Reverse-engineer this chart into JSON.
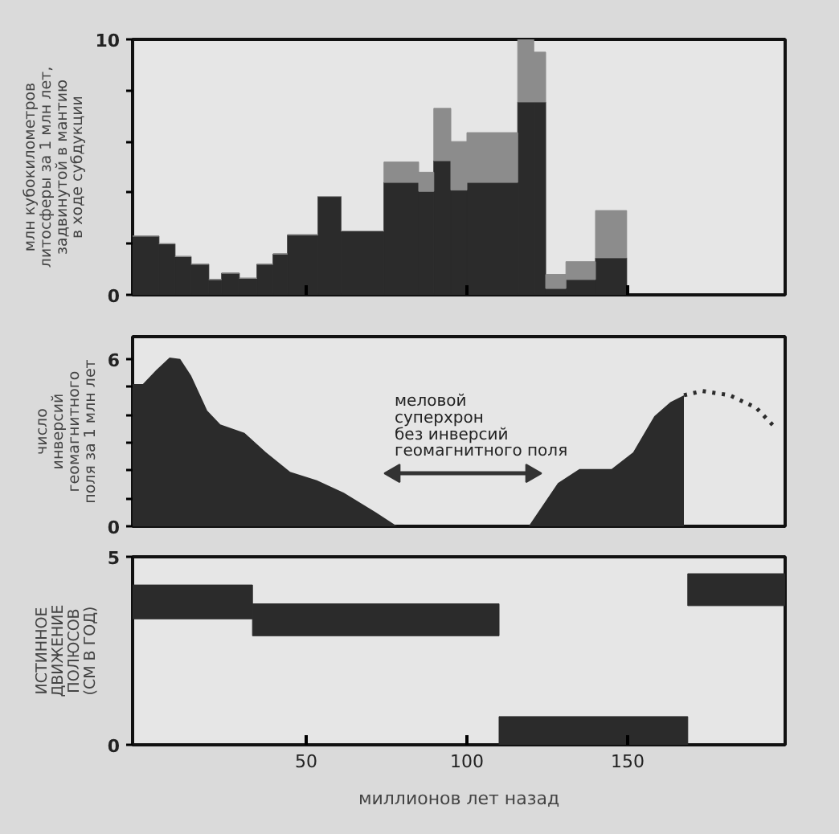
{
  "chart_data": [
    {
      "type": "bar",
      "stacked": true,
      "ylabel": "млн кубокилометров\nлитосферы за 1 млн лет,\nзадвинутой в мантию\nв ходе субдукции",
      "x": [
        0.1,
        6.7,
        11.7,
        16.95,
        21.7,
        26.45,
        31.95,
        37.2,
        41.95,
        48.95,
        57.25,
        67.5,
        79.6,
        87.35,
        92.35,
        97.5,
        107.9,
        118.3,
        122.65,
        127.65,
        135.4,
        144.85
      ],
      "series": [
        {
          "color": "#2b2b2b",
          "values": [
            2.3,
            2.0,
            1.5,
            1.2,
            0.6,
            0.85,
            0.65,
            1.2,
            1.6,
            2.35,
            3.85,
            2.5,
            4.4,
            4.05,
            5.25,
            4.1,
            4.4,
            7.55,
            7.55,
            0.25,
            0.6,
            1.45
          ]
        },
        {
          "color": "#8c8c8c",
          "values": [
            0,
            0,
            0,
            0,
            0,
            0,
            0,
            0,
            0,
            0,
            0,
            0,
            0.8,
            0.75,
            2.05,
            1.9,
            1.95,
            2.45,
            1.95,
            0.55,
            0.7,
            1.85
          ]
        }
      ],
      "xlim": [
        -4,
        199
      ],
      "xticks": [
        {
          "value": 50,
          "label": null
        },
        {
          "value": 100,
          "label": null
        },
        {
          "value": 150,
          "label": null
        }
      ],
      "ylim": [
        0,
        10
      ],
      "yticks": [
        0,
        {
          "value": 2,
          "label": null
        },
        {
          "value": 4,
          "label": null
        },
        {
          "value": 6,
          "label": null
        },
        {
          "value": 8,
          "label": null
        },
        10
      ],
      "tick_labels": "y"
    },
    {
      "type": "area",
      "ylabel": "число\nинверсий\nгеомагнитного\nполя за 1 млн лет",
      "series": [
        {
          "color": "#2b2b2b",
          "x": [
            -4,
            -0.8,
            3.3,
            7.5,
            10.8,
            14.2,
            19.2,
            23.3,
            30.8,
            37.5,
            45,
            53.3,
            61.7,
            71.7,
            78.3,
            119.2,
            128.3,
            135,
            145,
            151.7,
            158.3,
            163.3,
            167.5,
            167.5
          ],
          "values": [
            5.1,
            5.1,
            5.6,
            6.05,
            6.0,
            5.4,
            4.15,
            3.65,
            3.35,
            2.65,
            1.95,
            1.65,
            1.2,
            0.5,
            0,
            0,
            1.55,
            2.05,
            2.05,
            2.65,
            3.95,
            4.45,
            4.7,
            0
          ]
        },
        {
          "type": "line",
          "line_style": "dotted",
          "color": "#2b2b2b",
          "x": [
            167.5,
            173.3,
            181.7,
            190,
            195.8
          ],
          "values": [
            4.7,
            4.85,
            4.7,
            4.25,
            3.55
          ]
        },
        {
          "type": "line",
          "marker": "triangle",
          "color": "#333333",
          "x": [
            77.5,
            120
          ],
          "values": [
            1.9,
            1.9
          ]
        }
      ],
      "annotations": [
        {
          "text": "меловой\nсуперхрон\nбез инверсий\nгеомагнитного поля",
          "x": 77.5,
          "y": 2.35
        }
      ],
      "xlim": [
        -4,
        199
      ],
      "ylim": [
        0,
        6.8
      ],
      "yticks": [
        0,
        {
          "value": 1,
          "label": null
        },
        {
          "value": 2,
          "label": null
        },
        {
          "value": 3,
          "label": null
        },
        {
          "value": 4,
          "label": null
        },
        {
          "value": 5,
          "label": null
        },
        6
      ],
      "tick_labels": "y"
    },
    {
      "type": "bar",
      "ylabel": "ИСТИННОЕ\nДВИЖЕНИЕ\nПОЛЮСОВ\n(СМ В ГОД)",
      "xlabel": "миллионов лет назад",
      "x": [
        14.65,
        71.65,
        139.35,
        183.85
      ],
      "series": [
        {
          "color": "#2b2b2b",
          "values": [
            0.9,
            0.85,
            0.75,
            0.85
          ],
          "base": [
            3.35,
            2.9,
            0,
            3.7
          ]
        }
      ],
      "xlim": [
        -4,
        199
      ],
      "xticks": [
        50,
        100,
        150
      ],
      "ylim": [
        0,
        5
      ],
      "yticks": [
        0,
        5
      ]
    }
  ]
}
